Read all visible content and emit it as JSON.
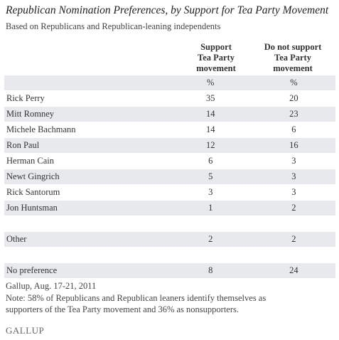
{
  "chart_data": {
    "type": "table",
    "title": "Republican Nomination Preferences, by Support for Tea Party Movement",
    "subtitle": "Based on Republicans and Republican-leaning independents",
    "columns": [
      {
        "lines": [
          "Support",
          "Tea Party",
          "movement"
        ]
      },
      {
        "lines": [
          "Do not support",
          "Tea Party",
          "movement"
        ]
      }
    ],
    "unit_row": [
      "%",
      "%"
    ],
    "rows": [
      {
        "label": "Rick Perry",
        "values": [
          "35",
          "20"
        ]
      },
      {
        "label": "Mitt Romney",
        "values": [
          "14",
          "23"
        ]
      },
      {
        "label": "Michele Bachmann",
        "values": [
          "14",
          "6"
        ]
      },
      {
        "label": "Ron Paul",
        "values": [
          "12",
          "16"
        ]
      },
      {
        "label": "Herman Cain",
        "values": [
          "6",
          "3"
        ]
      },
      {
        "label": "Newt Gingrich",
        "values": [
          "5",
          "3"
        ]
      },
      {
        "label": "Rick Santorum",
        "values": [
          "3",
          "3"
        ]
      },
      {
        "label": "Jon Huntsman",
        "values": [
          "1",
          "2"
        ]
      },
      {
        "label": "",
        "values": [
          "",
          ""
        ]
      },
      {
        "label": "Other",
        "values": [
          "2",
          "2"
        ]
      },
      {
        "label": "",
        "values": [
          "",
          ""
        ]
      },
      {
        "label": "No preference",
        "values": [
          "8",
          "24"
        ]
      }
    ]
  },
  "footer": {
    "source": "Gallup, Aug. 17-21, 2011",
    "note_line1": "Note: 58% of Republicans and Republican leaners identify themselves as",
    "note_line2": "supporters of the Tea Party movement and 36% as nonsupporters."
  },
  "logo": "GALLUP"
}
